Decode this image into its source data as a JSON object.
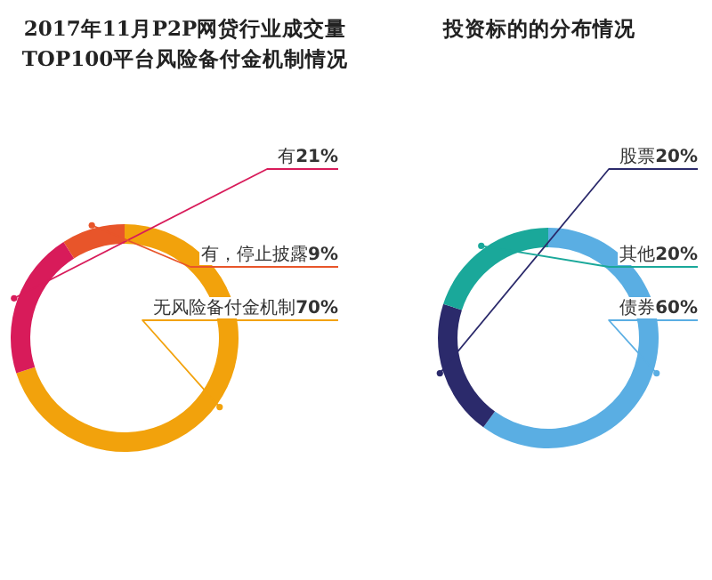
{
  "chart_data": [
    {
      "type": "donut",
      "title": "2017年11月P2P网贷行业成交量TOP100平台风险备付金机制情况",
      "categories": [
        "有",
        "有，停止披露",
        "无风险备付金机制"
      ],
      "values": [
        21,
        9,
        70
      ],
      "value_labels": [
        "21%",
        "9%",
        "70%"
      ],
      "colors": [
        "#d81b5a",
        "#e8552a",
        "#f2a20c"
      ]
    },
    {
      "type": "donut",
      "title": "投资标的的分布情况",
      "categories": [
        "股票",
        "其他",
        "债券"
      ],
      "values": [
        20,
        20,
        60
      ],
      "value_labels": [
        "20%",
        "20%",
        "60%"
      ],
      "colors": [
        "#2b2a6b",
        "#1aa89a",
        "#5aaee3"
      ]
    }
  ]
}
